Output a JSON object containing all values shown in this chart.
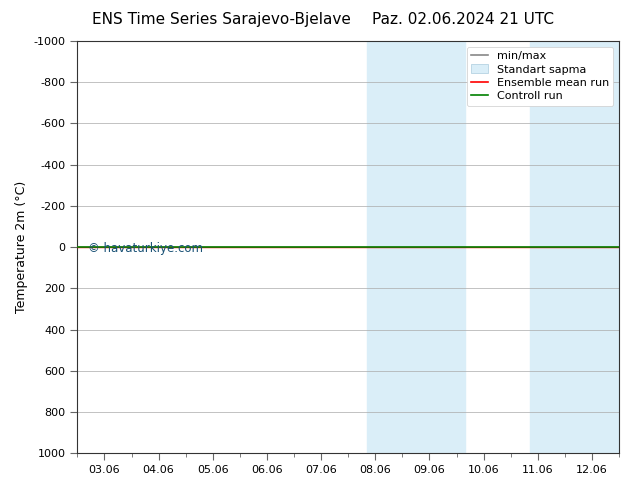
{
  "title_left": "ENS Time Series Sarajevo-Bjelave",
  "title_right": "Paz. 02.06.2024 21 UTC",
  "ylabel": "Temperature 2m (°C)",
  "xlabel_ticks": [
    "03.06",
    "04.06",
    "05.06",
    "06.06",
    "07.06",
    "08.06",
    "09.06",
    "10.06",
    "11.06",
    "12.06"
  ],
  "yticks": [
    -1000,
    -800,
    -600,
    -400,
    -200,
    0,
    200,
    400,
    600,
    800,
    1000
  ],
  "ylim_top": -1000,
  "ylim_bottom": 1000,
  "shaded_bands": [
    {
      "xmin": 5.5,
      "xmax": 6.5,
      "color": "#daeef8"
    },
    {
      "xmin": 6.5,
      "xmax": 7.5,
      "color": "#daeef8"
    },
    {
      "xmin": 8.5,
      "xmax": 9.5,
      "color": "#daeef8"
    },
    {
      "xmin": 9.5,
      "xmax": 10.5,
      "color": "#daeef8"
    }
  ],
  "ensemble_mean_y": 0,
  "control_run_y": 0,
  "watermark": "© havaturkiye.com",
  "watermark_color": "#1a5276",
  "background_color": "#ffffff",
  "plot_bg_color": "#ffffff",
  "grid_color": "#aaaaaa",
  "title_fontsize": 11,
  "axis_fontsize": 9,
  "tick_fontsize": 8,
  "legend_fontsize": 8
}
